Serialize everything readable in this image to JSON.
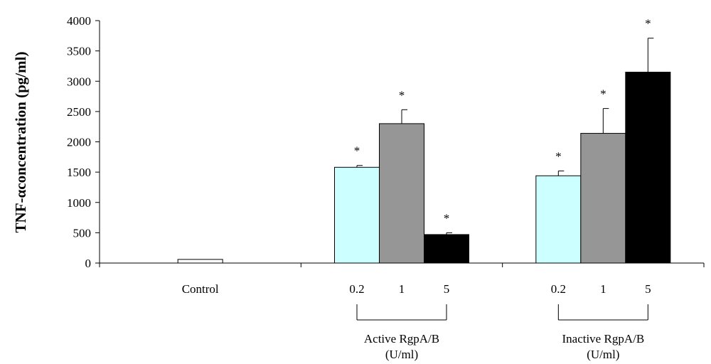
{
  "chart_data": {
    "type": "bar",
    "title": "",
    "xlabel": "",
    "ylabel": "TNF-αconcentration  (pg/ml)",
    "ylim": [
      0,
      4000
    ],
    "yticks": [
      0,
      500,
      1000,
      1500,
      2000,
      2500,
      3000,
      3500,
      4000
    ],
    "grid": false,
    "legend": null,
    "colors": {
      "control": "#ffffff",
      "0.2": "#ccffff",
      "1": "#969696",
      "5": "#000000"
    },
    "groups": [
      {
        "name": "Control",
        "label_lines": [],
        "bars": [
          {
            "category": "Control",
            "value": 60,
            "error": 0,
            "significant": false,
            "color_key": "control"
          }
        ]
      },
      {
        "name": "Active",
        "label_lines": [
          "Active RgpA/B",
          "(U/ml)"
        ],
        "bars": [
          {
            "category": "0.2",
            "value": 1580,
            "error": 30,
            "significant": true,
            "color_key": "0.2"
          },
          {
            "category": "1",
            "value": 2300,
            "error": 230,
            "significant": true,
            "color_key": "1"
          },
          {
            "category": "5",
            "value": 470,
            "error": 30,
            "significant": true,
            "color_key": "5"
          }
        ]
      },
      {
        "name": "Inactive",
        "label_lines": [
          "Inactive RgpA/B",
          "(U/ml)"
        ],
        "bars": [
          {
            "category": "0.2",
            "value": 1440,
            "error": 80,
            "significant": true,
            "color_key": "0.2"
          },
          {
            "category": "1",
            "value": 2140,
            "error": 410,
            "significant": true,
            "color_key": "1"
          },
          {
            "category": "5",
            "value": 3150,
            "error": 560,
            "significant": true,
            "color_key": "5"
          }
        ]
      }
    ],
    "significance_marker": "*"
  }
}
